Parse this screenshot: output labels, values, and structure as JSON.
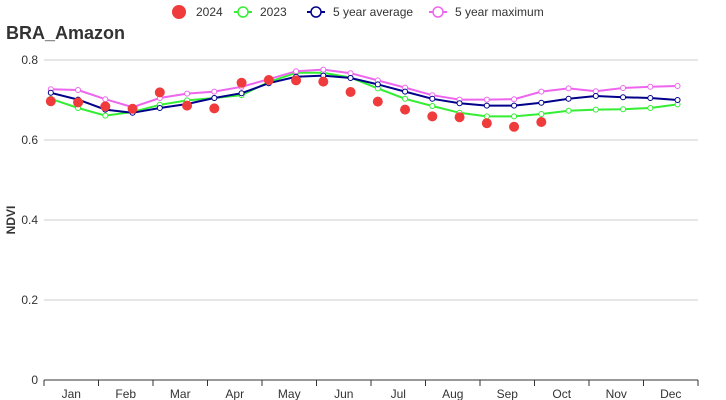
{
  "chart_data": {
    "type": "line",
    "title": "BRA_Amazon",
    "xlabel": "",
    "ylabel": "NDVI",
    "ylim": [
      0,
      0.8
    ],
    "yticks": [
      0,
      0.2,
      0.4,
      0.6,
      0.8
    ],
    "ytick_labels": [
      "0",
      "0.2",
      "0.4",
      "0.6",
      "0.8"
    ],
    "xlim": [
      0,
      24
    ],
    "months": [
      {
        "label": "Jan",
        "pos": 1
      },
      {
        "label": "Feb",
        "pos": 3
      },
      {
        "label": "Mar",
        "pos": 5
      },
      {
        "label": "Apr",
        "pos": 7
      },
      {
        "label": "May",
        "pos": 9
      },
      {
        "label": "Jun",
        "pos": 11
      },
      {
        "label": "Jul",
        "pos": 13
      },
      {
        "label": "Aug",
        "pos": 15
      },
      {
        "label": "Sep",
        "pos": 17
      },
      {
        "label": "Oct",
        "pos": 19
      },
      {
        "label": "Nov",
        "pos": 21
      },
      {
        "label": "Dec",
        "pos": 23
      }
    ],
    "grid": "horizontal",
    "legend_position": "top",
    "x": [
      0.25,
      1.25,
      2.25,
      3.25,
      4.25,
      5.25,
      6.25,
      7.25,
      8.25,
      9.25,
      10.25,
      11.25,
      12.25,
      13.25,
      14.25,
      15.25,
      16.25,
      17.25,
      18.25,
      19.25,
      20.25,
      21.25,
      22.25,
      23.25
    ],
    "series": [
      {
        "name": "2024",
        "style": "dots",
        "color": "#ef3b3b",
        "values": [
          0.697,
          0.694,
          0.684,
          0.678,
          0.719,
          0.686,
          0.679,
          0.743,
          0.75,
          0.749,
          0.746,
          0.72,
          0.696,
          0.676,
          0.659,
          0.657,
          0.642,
          0.633,
          0.645,
          null,
          null,
          null,
          null,
          null
        ]
      },
      {
        "name": "2023",
        "style": "line",
        "color": "#33ee33",
        "values": [
          0.703,
          0.68,
          0.661,
          0.67,
          0.688,
          0.699,
          0.705,
          0.712,
          0.745,
          0.768,
          0.768,
          0.756,
          0.729,
          0.703,
          0.685,
          0.668,
          0.659,
          0.659,
          0.665,
          0.673,
          0.676,
          0.677,
          0.68,
          0.689
        ]
      },
      {
        "name": "5 year average",
        "style": "line",
        "color": "#00008b",
        "values": [
          0.718,
          0.701,
          0.676,
          0.668,
          0.68,
          0.69,
          0.705,
          0.717,
          0.742,
          0.758,
          0.761,
          0.755,
          0.739,
          0.721,
          0.703,
          0.692,
          0.686,
          0.686,
          0.693,
          0.703,
          0.71,
          0.707,
          0.705,
          0.7
        ]
      },
      {
        "name": "5 year maximum",
        "style": "line",
        "color": "#ee66ee",
        "values": [
          0.727,
          0.725,
          0.702,
          0.682,
          0.705,
          0.716,
          0.721,
          0.733,
          0.752,
          0.772,
          0.776,
          0.767,
          0.749,
          0.731,
          0.712,
          0.701,
          0.701,
          0.702,
          0.721,
          0.729,
          0.722,
          0.73,
          0.733,
          0.735
        ]
      }
    ]
  }
}
